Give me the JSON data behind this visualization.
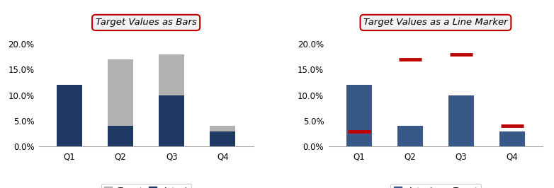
{
  "categories": [
    "Q1",
    "Q2",
    "Q3",
    "Q4"
  ],
  "actual": [
    0.12,
    0.04,
    0.1,
    0.03
  ],
  "target": [
    0.03,
    0.17,
    0.18,
    0.04
  ],
  "title1": "Target Values as Bars",
  "title2": "Target Values as a Line Marker",
  "color_target_bar": "#b2b2b2",
  "color_actual_bar1": "#1f3864",
  "color_actual_bar2": "#385988",
  "color_target_line": "#c00000",
  "ylim": [
    0.0,
    0.205
  ],
  "yticks": [
    0.0,
    0.05,
    0.1,
    0.15,
    0.2
  ],
  "title_box_facecolor": "#f2f2f2",
  "title_border_color": "#c00000",
  "background_color": "#ffffff",
  "spine_color": "#aaaaaa"
}
